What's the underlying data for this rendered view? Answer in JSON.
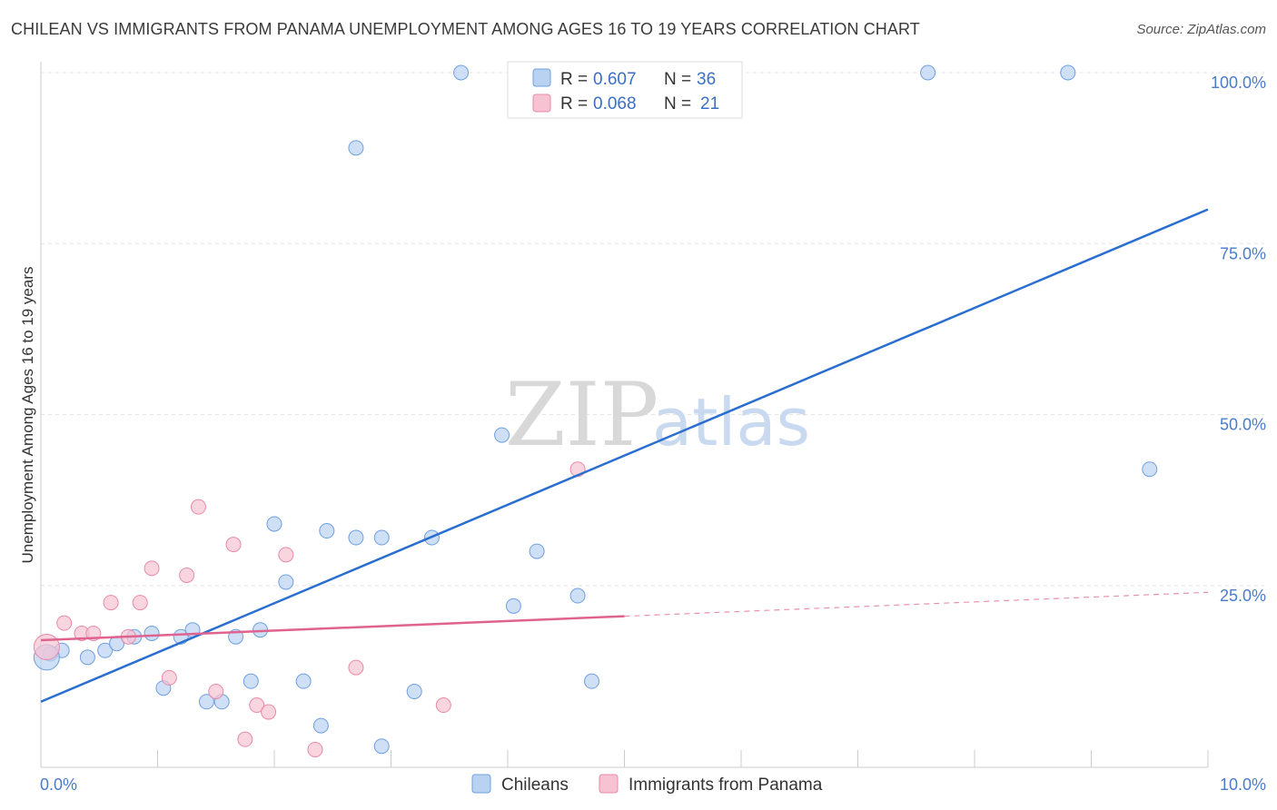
{
  "header": {
    "title": "CHILEAN VS IMMIGRANTS FROM PANAMA UNEMPLOYMENT AMONG AGES 16 TO 19 YEARS CORRELATION CHART",
    "source": "Source: ZipAtlas.com"
  },
  "watermark": {
    "zip": "ZIP",
    "atlas": "atlas"
  },
  "chart_data": {
    "type": "scatter",
    "title": "CHILEAN VS IMMIGRANTS FROM PANAMA UNEMPLOYMENT AMONG AGES 16 TO 19 YEARS CORRELATION CHART",
    "xlabel": "",
    "ylabel": "Unemployment Among Ages 16 to 19 years",
    "xlim": [
      0,
      10
    ],
    "ylim": [
      0,
      100
    ],
    "x_tick_labels": [
      "0.0%",
      "10.0%"
    ],
    "y_ticks": [
      25,
      50,
      75,
      100
    ],
    "y_tick_labels": [
      "25.0%",
      "50.0%",
      "75.0%",
      "100.0%"
    ],
    "grid": true,
    "legend_position": "top-center",
    "stats": [
      {
        "r_label": "R =",
        "r_value": "0.607",
        "n_label": "N =",
        "n_value": "36"
      },
      {
        "r_label": "R =",
        "r_value": "0.068",
        "n_label": "N =",
        "n_value": "21"
      }
    ],
    "series": [
      {
        "name": "Chileans",
        "color": "#6fa0e0",
        "fill": "#b9d2f2",
        "line_color": "#2a6fcf",
        "trend": {
          "x0": 0.0,
          "y0": 8.0,
          "x1": 10.0,
          "y1": 80.0
        },
        "points": [
          [
            0.08,
            15.0
          ],
          [
            0.18,
            15.5
          ],
          [
            0.4,
            14.5
          ],
          [
            0.55,
            15.5
          ],
          [
            0.65,
            16.5
          ],
          [
            0.8,
            17.5
          ],
          [
            0.95,
            18.0
          ],
          [
            1.05,
            10.0
          ],
          [
            1.2,
            17.5
          ],
          [
            1.3,
            18.5
          ],
          [
            1.42,
            8.0
          ],
          [
            1.55,
            8.0
          ],
          [
            1.67,
            17.5
          ],
          [
            1.8,
            11.0
          ],
          [
            1.88,
            18.5
          ],
          [
            2.0,
            34.0
          ],
          [
            2.1,
            25.5
          ],
          [
            2.25,
            11.0
          ],
          [
            2.4,
            4.5
          ],
          [
            2.45,
            33.0
          ],
          [
            2.7,
            32.0
          ],
          [
            2.92,
            1.5
          ],
          [
            2.92,
            32.0
          ],
          [
            3.2,
            9.5
          ],
          [
            3.35,
            32.0
          ],
          [
            3.6,
            100.0
          ],
          [
            2.7,
            89.0
          ],
          [
            3.95,
            47.0
          ],
          [
            4.05,
            22.0
          ],
          [
            4.25,
            30.0
          ],
          [
            4.6,
            23.5
          ],
          [
            4.72,
            11.0
          ],
          [
            7.6,
            100.0
          ],
          [
            8.8,
            100.0
          ],
          [
            9.5,
            42.0
          ],
          [
            0.05,
            14.5
          ]
        ]
      },
      {
        "name": "Immigrants from Panama",
        "color": "#e88aaa",
        "fill": "#f7c3d3",
        "line_color": "#e0628e",
        "trend": {
          "x0": 0.0,
          "y0": 17.0,
          "x1": 5.0,
          "y1": 20.5
        },
        "trend_ext": {
          "x0": 5.0,
          "y0": 20.5,
          "x1": 10.0,
          "y1": 24.0
        },
        "points": [
          [
            0.05,
            16.0
          ],
          [
            0.2,
            19.5
          ],
          [
            0.35,
            18.0
          ],
          [
            0.45,
            18.0
          ],
          [
            0.6,
            22.5
          ],
          [
            0.75,
            17.5
          ],
          [
            0.85,
            22.5
          ],
          [
            0.95,
            27.5
          ],
          [
            1.1,
            11.5
          ],
          [
            1.25,
            26.5
          ],
          [
            1.35,
            36.5
          ],
          [
            1.5,
            9.5
          ],
          [
            1.65,
            31.0
          ],
          [
            1.75,
            2.5
          ],
          [
            1.85,
            7.5
          ],
          [
            1.95,
            6.5
          ],
          [
            2.1,
            29.5
          ],
          [
            2.35,
            1.0
          ],
          [
            2.7,
            13.0
          ],
          [
            3.45,
            7.5
          ],
          [
            4.6,
            42.0
          ]
        ]
      }
    ]
  }
}
